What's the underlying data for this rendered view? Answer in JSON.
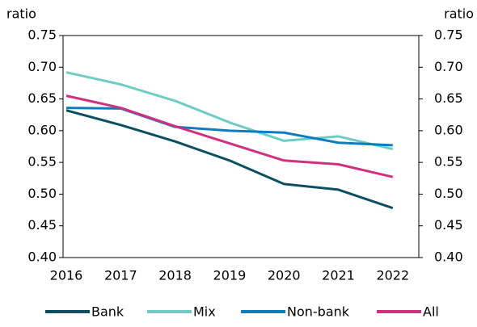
{
  "chart_data": {
    "type": "line",
    "y_label": "ratio",
    "y2_label": "ratio",
    "categories": [
      "2016",
      "2017",
      "2018",
      "2019",
      "2020",
      "2021",
      "2022"
    ],
    "series": [
      {
        "name": "Bank",
        "color": "#0b4f61",
        "values": [
          0.632,
          0.609,
          0.583,
          0.553,
          0.516,
          0.507,
          0.478
        ]
      },
      {
        "name": "Mix",
        "color": "#6dcdc4",
        "values": [
          0.692,
          0.673,
          0.647,
          0.613,
          0.584,
          0.591,
          0.571
        ]
      },
      {
        "name": "Non-bank",
        "color": "#0f7bc1",
        "values": [
          0.636,
          0.635,
          0.606,
          0.6,
          0.597,
          0.581,
          0.577
        ]
      },
      {
        "name": "All",
        "color": "#d1307f",
        "values": [
          0.655,
          0.636,
          0.607,
          0.58,
          0.553,
          0.547,
          0.527
        ]
      }
    ],
    "ylim": [
      0.4,
      0.75
    ],
    "yticks": [
      {
        "value": 0.4,
        "label": "0.40"
      },
      0.45,
      {
        "value": 0.5,
        "label": "0.50"
      },
      0.55,
      {
        "value": 0.6,
        "label": "0.60"
      },
      0.65,
      {
        "value": 0.7,
        "label": "0.70"
      },
      0.75
    ],
    "y2lim": [
      0.4,
      0.75
    ],
    "y2ticks": [
      {
        "value": 0.4,
        "label": "0.40"
      },
      0.45,
      {
        "value": 0.5,
        "label": "0.50"
      },
      0.55,
      {
        "value": 0.6,
        "label": "0.60"
      },
      0.65,
      {
        "value": 0.7,
        "label": "0.70"
      },
      0.75
    ],
    "grid": false,
    "legend": "bottom"
  }
}
